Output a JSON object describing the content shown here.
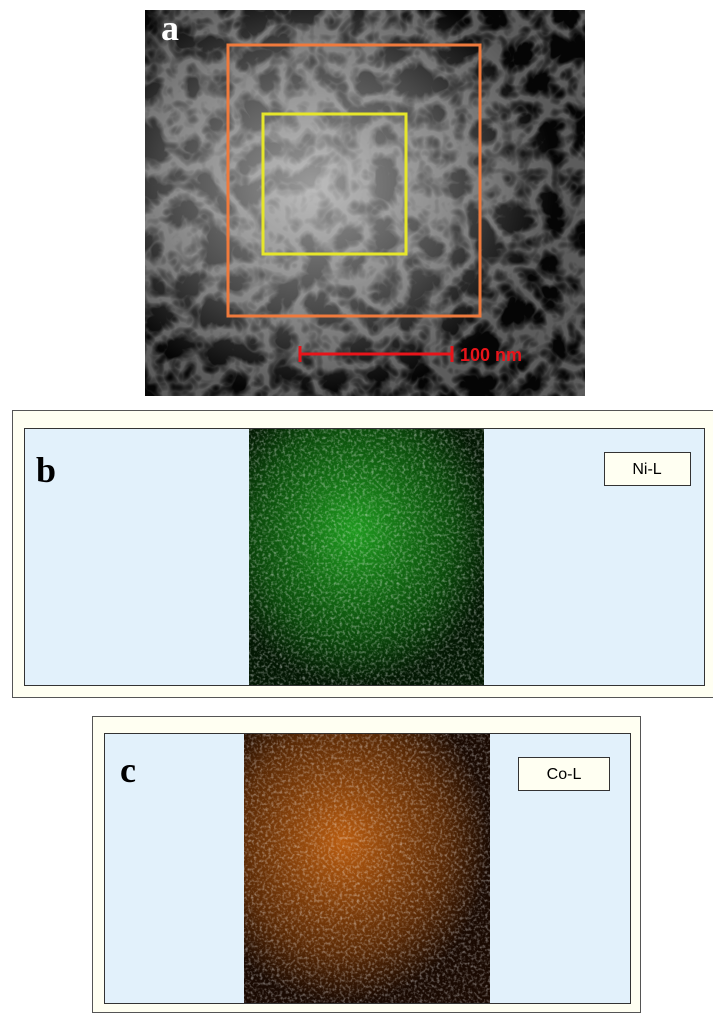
{
  "panels": [
    {
      "label": "a",
      "scale_bar": "100 nm"
    },
    {
      "label": "b",
      "element": "Ni-L"
    },
    {
      "label": "c",
      "element": "Co-L"
    }
  ]
}
